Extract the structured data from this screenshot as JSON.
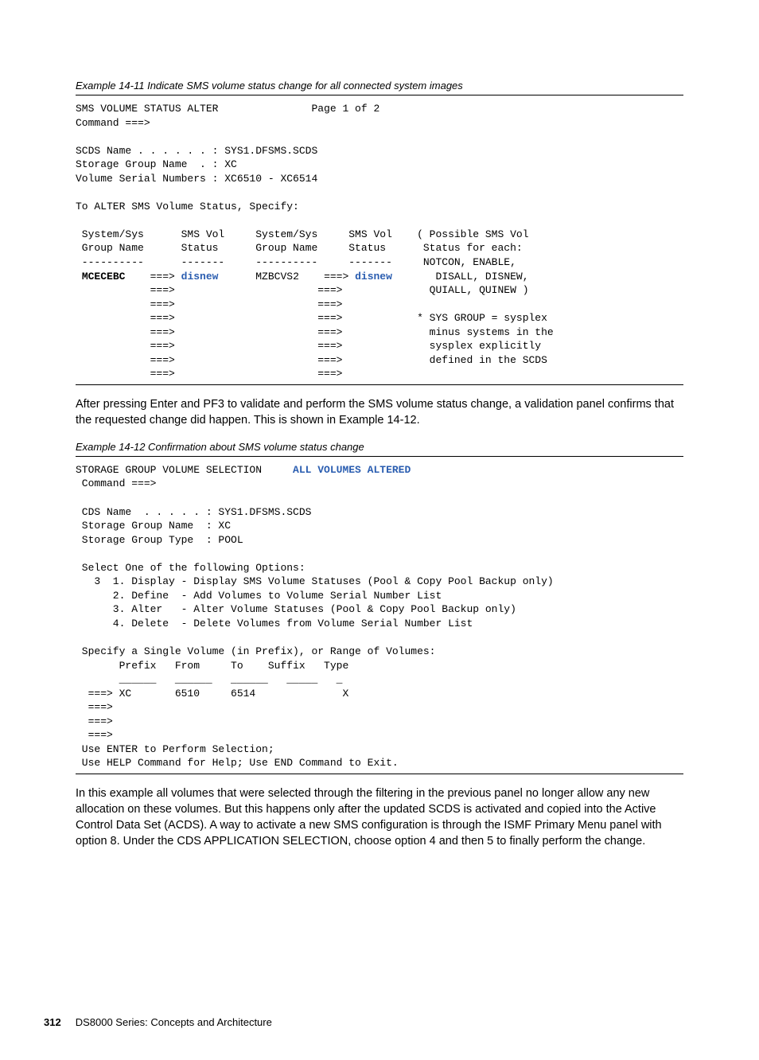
{
  "example1": {
    "caption": "Example 14-11   Indicate SMS volume status change for all connected system images",
    "line1": "SMS VOLUME STATUS ALTER               Page 1 of 2",
    "line2": "Command ===>",
    "line3": "",
    "line4": "SCDS Name . . . . . . : SYS1.DFSMS.SCDS",
    "line5": "Storage Group Name  . : XC",
    "line6": "Volume Serial Numbers : XC6510 - XC6514",
    "line7": "",
    "line8": "To ALTER SMS Volume Status, Specify:",
    "line9": "",
    "line10": " System/Sys      SMS Vol     System/Sys     SMS Vol    ( Possible SMS Vol",
    "line11": " Group Name      Status      Group Name     Status      Status for each:",
    "line12": " ----------      -------     ----------     -------     NOTCON, ENABLE,",
    "line13a": " ",
    "line13b": "MCECEBC",
    "line13c": "    ===> ",
    "line13d": "disnew",
    "line13e": "      MZBCVS2    ===> ",
    "line13f": "disnew",
    "line13g": "       DISALL, DISNEW,",
    "line14": "            ===>                       ===>              QUIALL, QUINEW )",
    "line15": "            ===>                       ===>",
    "line16": "            ===>                       ===>            * SYS GROUP = sysplex",
    "line17": "            ===>                       ===>              minus systems in the",
    "line18": "            ===>                       ===>              sysplex explicitly",
    "line19": "            ===>                       ===>              defined in the SCDS",
    "line20": "            ===>                       ===>"
  },
  "para1": "After pressing Enter and PF3 to validate and perform the SMS volume status change, a validation panel confirms that the requested change did happen. This is shown in Example 14-12.",
  "example2": {
    "caption": "Example 14-12   Confirmation about SMS volume status change",
    "line1a": "STORAGE GROUP VOLUME SELECTION     ",
    "line1b": "ALL VOLUMES ALTERED",
    "line2": " Command ===>",
    "line3": "",
    "line4": " CDS Name  . . . . . : SYS1.DFSMS.SCDS",
    "line5": " Storage Group Name  : XC",
    "line6": " Storage Group Type  : POOL",
    "line7": "",
    "line8": " Select One of the following Options:",
    "line9": "   3  1. Display - Display SMS Volume Statuses (Pool & Copy Pool Backup only)",
    "line10": "      2. Define  - Add Volumes to Volume Serial Number List",
    "line11": "      3. Alter   - Alter Volume Statuses (Pool & Copy Pool Backup only)",
    "line12": "      4. Delete  - Delete Volumes from Volume Serial Number List",
    "line13": "",
    "line14": " Specify a Single Volume (in Prefix), or Range of Volumes:",
    "line15": "       Prefix   From     To    Suffix   Type",
    "line16": "       ______   ______   ______   _____   _",
    "line17": "  ===> XC       6510     6514              X",
    "line18": "  ===>",
    "line19": "  ===>",
    "line20": "  ===>",
    "line21": " Use ENTER to Perform Selection;",
    "line22": " Use HELP Command for Help; Use END Command to Exit."
  },
  "para2": "In this example all volumes that were selected through the filtering in the previous panel no longer allow any new allocation on these volumes. But this happens only after the updated SCDS is activated and copied into the Active Control Data Set (ACDS). A way to activate a new SMS configuration is through the ISMF Primary Menu panel with option 8. Under the CDS APPLICATION SELECTION, choose option 4 and then 5 to finally perform the change.",
  "footer": {
    "page": "312",
    "title": "DS8000 Series: Concepts and Architecture"
  }
}
